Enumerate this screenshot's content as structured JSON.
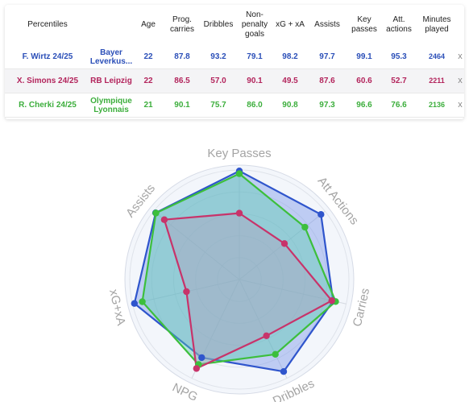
{
  "table": {
    "headers": [
      "Percentiles",
      "Age",
      "Prog. carries",
      "Dribbles",
      "Non-penalty goals",
      "xG + xA",
      "Assists",
      "Key passes",
      "Att. actions",
      "Minutes played"
    ],
    "rows": [
      {
        "player": "F. Wirtz 24/25",
        "team": "Bayer Leverkus...",
        "age": "22",
        "prog_carries": "87.8",
        "dribbles": "93.2",
        "npg": "79.1",
        "xg_xa": "98.2",
        "assists": "97.7",
        "key_passes": "99.1",
        "att_actions": "95.3",
        "minutes": "2464",
        "remove": "x",
        "color": "#2b4fb8",
        "bg": "#ffffff"
      },
      {
        "player": "X. Simons 24/25",
        "team": "RB Leipzig",
        "age": "22",
        "prog_carries": "86.5",
        "dribbles": "57.0",
        "npg": "90.1",
        "xg_xa": "49.5",
        "assists": "87.6",
        "key_passes": "60.6",
        "att_actions": "52.7",
        "minutes": "2211",
        "remove": "x",
        "color": "#b3245c",
        "bg": "#f4f4f6"
      },
      {
        "player": "R. Cherki 24/25",
        "team": "Olympique Lyonnais",
        "age": "21",
        "prog_carries": "90.1",
        "dribbles": "75.7",
        "npg": "86.0",
        "xg_xa": "90.8",
        "assists": "97.3",
        "key_passes": "96.6",
        "att_actions": "76.6",
        "minutes": "2136",
        "remove": "x",
        "color": "#3cae3c",
        "bg": "#ffffff"
      }
    ]
  },
  "chart_data": {
    "type": "radar",
    "axes": [
      "Key Passes",
      "Att Actions",
      "Carries",
      "Dribbles",
      "NPG",
      "xG+xA",
      "Assists"
    ],
    "range": [
      0,
      100
    ],
    "series": [
      {
        "name": "F. Wirtz 24/25",
        "color": "#2f55cc",
        "fill": "#6f8ee8",
        "values": [
          99.1,
          95.3,
          87.8,
          93.2,
          79.1,
          98.2,
          97.7
        ]
      },
      {
        "name": "R. Cherki 24/25",
        "color": "#3cbf3c",
        "fill": "#55ccaa",
        "values": [
          96.6,
          76.6,
          90.1,
          75.7,
          86.0,
          90.8,
          97.3
        ]
      },
      {
        "name": "X. Simons 24/25",
        "color": "#c8336a",
        "fill": "#b0a0bd",
        "values": [
          60.6,
          52.7,
          86.5,
          57.0,
          90.1,
          49.5,
          87.6
        ]
      }
    ]
  }
}
